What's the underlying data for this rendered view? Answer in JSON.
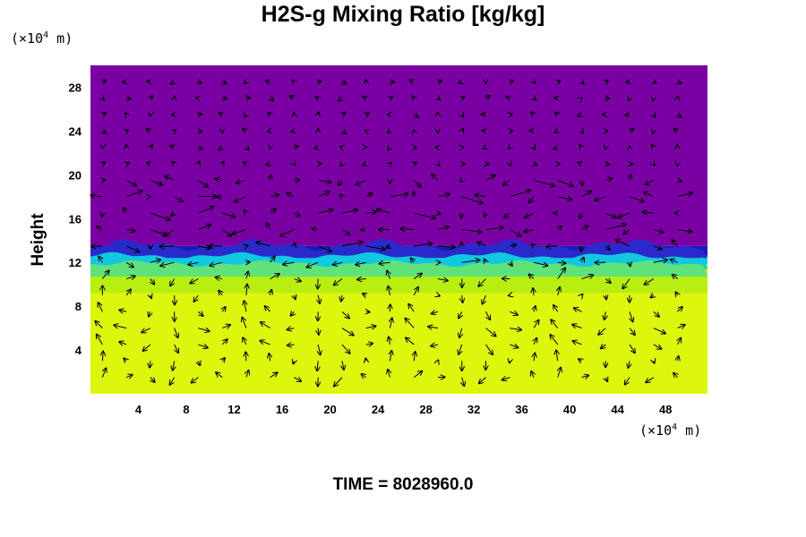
{
  "chart_data": {
    "type": "heatmap",
    "title": "H2S-g Mixing Ratio [kg/kg]",
    "ylabel": "Height",
    "xlabel": "",
    "x_unit": {
      "prefix": "(×10",
      "exp": "4",
      "suffix": " m)"
    },
    "y_unit": {
      "prefix": "(×10",
      "exp": "4",
      "suffix": " m)"
    },
    "xlim": [
      0,
      51.5
    ],
    "ylim": [
      0,
      30
    ],
    "x_ticks": [
      4,
      8,
      12,
      16,
      20,
      24,
      28,
      32,
      36,
      40,
      44,
      48
    ],
    "y_ticks": [
      4,
      8,
      12,
      16,
      20,
      24,
      28
    ],
    "grid": false,
    "layers": [
      {
        "name": "upper",
        "y_from": 13.5,
        "y_to": 30,
        "color": "#7b00a4"
      },
      {
        "name": "interface-dark",
        "y_from": 12.6,
        "y_to": 13.5,
        "color": "#1a1ab8"
      },
      {
        "name": "interface-cyan",
        "y_from": 11.8,
        "y_to": 12.6,
        "color": "#00d0d8"
      },
      {
        "name": "transition-green",
        "y_from": 9.2,
        "y_to": 11.8,
        "color": "#b8ee10"
      },
      {
        "name": "lower",
        "y_from": 0,
        "y_to": 9.2,
        "color": "#ddf60e"
      }
    ],
    "annotations": {
      "time": "TIME = 8028960.0"
    },
    "vector_field": true
  }
}
